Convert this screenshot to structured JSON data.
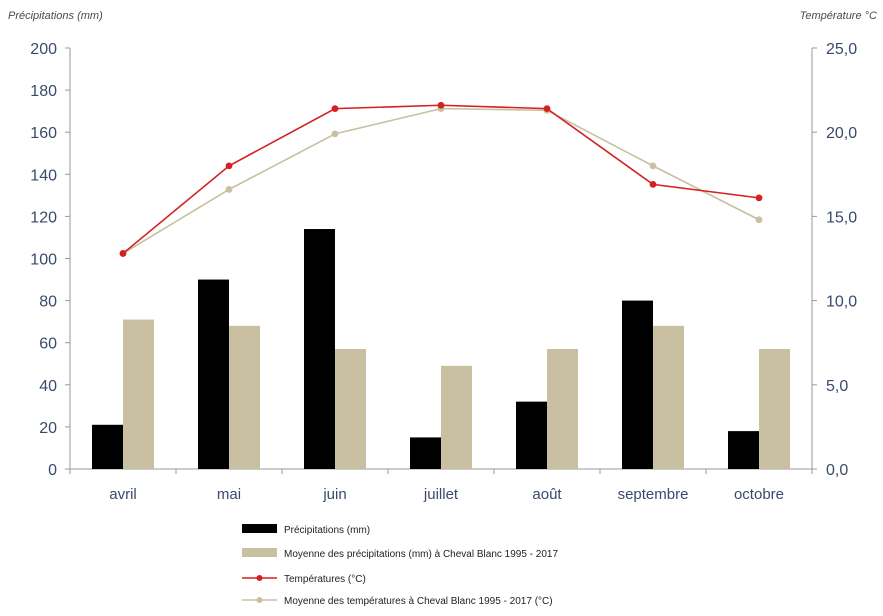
{
  "colors": {
    "precip": "#000000",
    "precip_avg": "#c8c0a0",
    "temp": "#d42020",
    "temp_avg": "#c8c0a0",
    "axis": "#9a9a9a",
    "text": "#3a4a6a"
  },
  "chart_data": {
    "type": "bar",
    "categories": [
      "avril",
      "mai",
      "juin",
      "juillet",
      "août",
      "septembre",
      "octobre"
    ],
    "y_left": {
      "label": "Précipitations (mm)",
      "ylim": [
        0,
        200
      ],
      "ticks": [
        "0",
        "20",
        "40",
        "60",
        "80",
        "100",
        "120",
        "140",
        "160",
        "180",
        "200"
      ]
    },
    "y_right": {
      "label": "Température °C",
      "ylim": [
        0,
        25
      ],
      "ticks": [
        "0,0",
        "5,0",
        "10,0",
        "15,0",
        "20,0",
        "25,0"
      ]
    },
    "series": [
      {
        "name": "Précipitations (mm)",
        "kind": "bar",
        "axis": "left",
        "values": [
          21,
          90,
          114,
          15,
          32,
          80,
          18
        ]
      },
      {
        "name": "Moyenne des précipitations (mm) à Cheval Blanc 1995 - 2017",
        "kind": "bar",
        "axis": "left",
        "values": [
          71,
          68,
          57,
          49,
          57,
          68,
          57
        ]
      },
      {
        "name": "Températures (°C)",
        "kind": "line",
        "axis": "right",
        "values": [
          12.8,
          18.0,
          21.4,
          21.6,
          21.4,
          16.9,
          16.1
        ]
      },
      {
        "name": "Moyenne des températures à Cheval Blanc 1995 - 2017 (°C)",
        "kind": "line",
        "axis": "right",
        "values": [
          12.8,
          16.6,
          19.9,
          21.4,
          21.3,
          18.0,
          14.8
        ]
      }
    ],
    "grid": false,
    "legend_position": "bottom"
  }
}
